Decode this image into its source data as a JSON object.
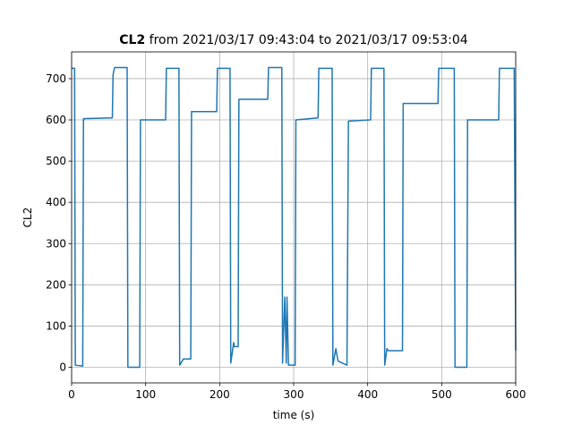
{
  "chart_data": {
    "type": "line",
    "title": {
      "name": "CL2",
      "text": "from 2021/03/17 09:43:04 to 2021/03/17 09:53:04"
    },
    "xlabel": "time (s)",
    "ylabel": "CL2",
    "xlim": [
      0,
      600
    ],
    "ylim": [
      -38,
      765
    ],
    "xticks": [
      0,
      100,
      200,
      300,
      400,
      500,
      600
    ],
    "yticks": [
      0,
      100,
      200,
      300,
      400,
      500,
      600,
      700
    ],
    "grid": true,
    "x": [
      0,
      4,
      5,
      15,
      16,
      55,
      56,
      58,
      75,
      76,
      92,
      93,
      127,
      128,
      145,
      146,
      151,
      161,
      162,
      196,
      197,
      214,
      215,
      219,
      220,
      225,
      226,
      265,
      266,
      284,
      285,
      288,
      290,
      291,
      293,
      302,
      303,
      333,
      334,
      352,
      353,
      357,
      360,
      372,
      374,
      404,
      405,
      422,
      423,
      426,
      428,
      447,
      448,
      495,
      496,
      517,
      518,
      534,
      535,
      577,
      578,
      598,
      600
    ],
    "series": [
      {
        "name": "CL2",
        "color": "#1f77b4",
        "values": [
          725,
          725,
          5,
          3,
          603,
          605,
          710,
          727,
          727,
          0,
          0,
          600,
          600,
          725,
          725,
          5,
          20,
          20,
          620,
          620,
          725,
          725,
          10,
          60,
          50,
          50,
          650,
          650,
          727,
          727,
          10,
          170,
          10,
          170,
          5,
          5,
          600,
          605,
          725,
          725,
          5,
          45,
          15,
          5,
          597,
          600,
          725,
          725,
          5,
          45,
          40,
          40,
          640,
          640,
          725,
          725,
          0,
          0,
          600,
          600,
          725,
          725,
          40
        ]
      }
    ]
  }
}
